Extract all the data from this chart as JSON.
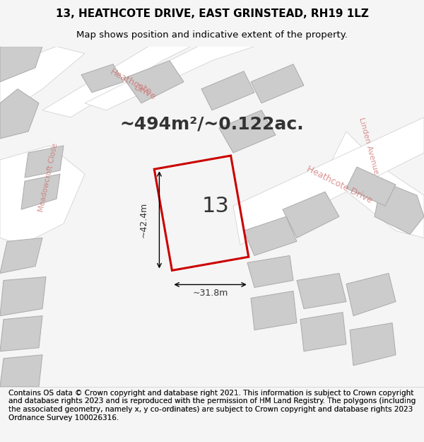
{
  "title_line1": "13, HEATHCOTE DRIVE, EAST GRINSTEAD, RH19 1LZ",
  "title_line2": "Map shows position and indicative extent of the property.",
  "area_text": "~494m²/~0.122ac.",
  "label_number": "13",
  "dim_width": "~31.8m",
  "dim_height": "~42.4m",
  "footer_text": "Contains OS data © Crown copyright and database right 2021. This information is subject to Crown copyright and database rights 2023 and is reproduced with the permission of HM Land Registry. The polygons (including the associated geometry, namely x, y co-ordinates) are subject to Crown copyright and database rights 2023 Ordnance Survey 100026316.",
  "bg_color": "#f0eeee",
  "map_bg": "#ebebeb",
  "road_color": "#ffffff",
  "building_color": "#cccccc",
  "highlight_color": "#cc0000",
  "street_label_color": "#cc6666",
  "title_fontsize": 11,
  "subtitle_fontsize": 9.5,
  "area_fontsize": 18,
  "label_fontsize": 22,
  "dim_fontsize": 9,
  "footer_fontsize": 7.5
}
